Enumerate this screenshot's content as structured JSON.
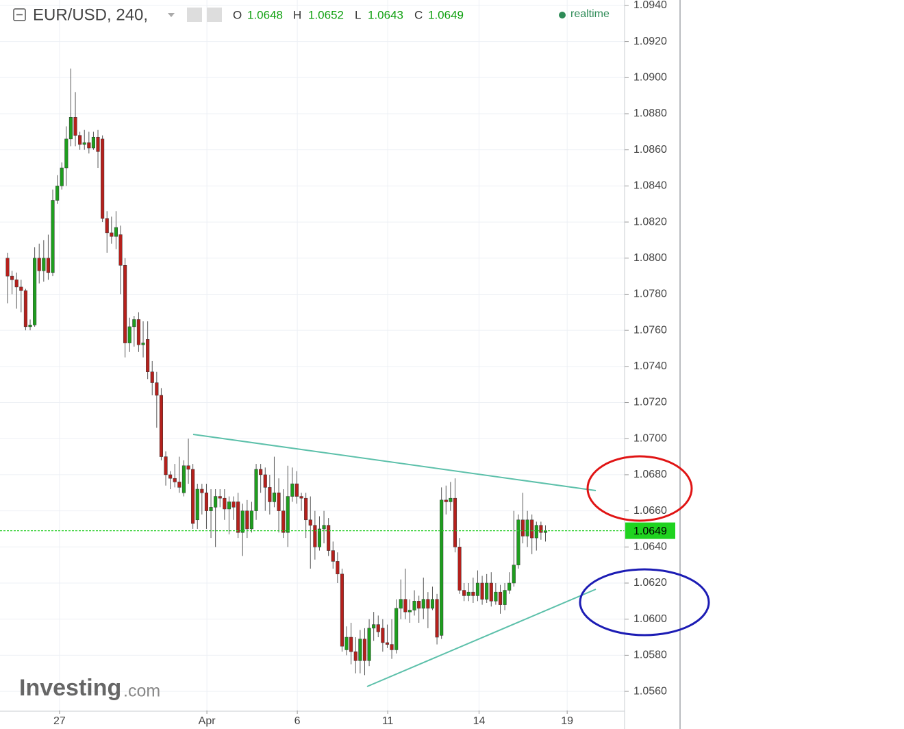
{
  "chart_data": {
    "type": "candlestick",
    "title": "EUR/USD, 240,",
    "ohlc_labels": [
      "O",
      "H",
      "L",
      "C"
    ],
    "status": "realtime",
    "watermark": [
      "Investing",
      ".com"
    ],
    "up_color": "#1e9e1e",
    "down_color": "#b5201c",
    "grid": true,
    "open": [
      1.08,
      1.079,
      1.0788,
      1.0784,
      1.0782,
      1.0762,
      1.0763,
      1.08,
      1.0793,
      1.08,
      1.0792,
      1.0832,
      1.084,
      1.085,
      1.0866,
      1.0878,
      1.0868,
      1.0863,
      1.0864,
      1.0861,
      1.0867,
      1.0866,
      1.0822,
      1.0814,
      1.0812,
      1.0813,
      1.0796,
      1.0753,
      1.0762,
      1.0766,
      1.0752,
      1.0755,
      1.0737,
      1.0731,
      1.0724,
      1.069,
      1.068,
      1.0678,
      1.0676,
      1.067,
      1.0685,
      1.0683,
      1.0655,
      1.0672,
      1.067,
      1.066,
      1.0662,
      1.0668,
      1.0667,
      1.0661,
      1.0665,
      1.0665,
      1.0648,
      1.066,
      1.065,
      1.066,
      1.0683,
      1.068,
      1.0673,
      1.0665,
      1.067,
      1.066,
      1.0648,
      1.0668,
      1.0675,
      1.0668,
      1.0667,
      1.0655,
      1.0652,
      1.064,
      1.065,
      1.0652,
      1.0638,
      1.0632,
      1.0625,
      1.0583,
      1.059,
      1.0582,
      1.0577,
      1.0589,
      1.0577,
      1.0595,
      1.0597,
      1.0595,
      1.0587,
      1.0586,
      1.0583,
      1.0606,
      1.0611,
      1.0604,
      1.0605,
      1.061,
      1.0606,
      1.0611,
      1.0606,
      1.0611,
      1.0591,
      1.0666,
      1.0665,
      1.0667,
      1.064,
      1.0616,
      1.0613,
      1.0615,
      1.0613,
      1.062,
      1.0611,
      1.062,
      1.061,
      1.0615,
      1.0608,
      1.0616,
      1.062,
      1.063,
      1.0655,
      1.0646,
      1.0655,
      1.0645,
      1.0652,
      1.0648
    ],
    "high": [
      1.0803,
      1.0793,
      1.0792,
      1.0788,
      1.0783,
      1.0766,
      1.0806,
      1.0808,
      1.081,
      1.0813,
      1.0838,
      1.0846,
      1.0853,
      1.0873,
      1.0905,
      1.0892,
      1.087,
      1.0871,
      1.087,
      1.087,
      1.0871,
      1.0868,
      1.0826,
      1.0823,
      1.0826,
      1.0818,
      1.08,
      1.0767,
      1.0768,
      1.077,
      1.0765,
      1.0765,
      1.0743,
      1.0737,
      1.0728,
      1.0693,
      1.0682,
      1.0686,
      1.069,
      1.0688,
      1.07,
      1.0686,
      1.0675,
      1.0675,
      1.0675,
      1.0672,
      1.0672,
      1.0672,
      1.0672,
      1.0668,
      1.0668,
      1.067,
      1.0664,
      1.0666,
      1.0665,
      1.0686,
      1.0686,
      1.0684,
      1.068,
      1.069,
      1.0678,
      1.0672,
      1.0685,
      1.0684,
      1.0682,
      1.067,
      1.067,
      1.0668,
      1.066,
      1.0657,
      1.066,
      1.0656,
      1.0643,
      1.0637,
      1.0628,
      1.0596,
      1.0598,
      1.059,
      1.0594,
      1.0595,
      1.06,
      1.0604,
      1.0602,
      1.06,
      1.0597,
      1.06,
      1.0611,
      1.0622,
      1.0628,
      1.0611,
      1.0616,
      1.0613,
      1.0623,
      1.0615,
      1.0618,
      1.0614,
      1.0673,
      1.0674,
      1.0676,
      1.0678,
      1.0645,
      1.062,
      1.062,
      1.0623,
      1.0627,
      1.0624,
      1.0625,
      1.0626,
      1.062,
      1.0619,
      1.062,
      1.0626,
      1.066,
      1.0658,
      1.067,
      1.066,
      1.0658,
      1.0654,
      1.0654,
      1.0652
    ],
    "low": [
      1.0775,
      1.078,
      1.0772,
      1.077,
      1.076,
      1.076,
      1.0762,
      1.0786,
      1.0787,
      1.0788,
      1.079,
      1.083,
      1.0838,
      1.084,
      1.0862,
      1.0862,
      1.086,
      1.086,
      1.0858,
      1.086,
      1.085,
      1.082,
      1.0803,
      1.0808,
      1.0805,
      1.078,
      1.0745,
      1.0748,
      1.0751,
      1.0748,
      1.0745,
      1.0733,
      1.0724,
      1.0706,
      1.0688,
      1.0674,
      1.0672,
      1.0673,
      1.067,
      1.0668,
      1.0675,
      1.065,
      1.065,
      1.0658,
      1.065,
      1.0645,
      1.064,
      1.0662,
      1.0655,
      1.0647,
      1.0655,
      1.0645,
      1.0635,
      1.0645,
      1.0648,
      1.0655,
      1.067,
      1.066,
      1.0658,
      1.0662,
      1.0648,
      1.0645,
      1.064,
      1.0665,
      1.0664,
      1.066,
      1.0645,
      1.0628,
      1.0633,
      1.0638,
      1.0642,
      1.0635,
      1.0628,
      1.062,
      1.0582,
      1.058,
      1.0575,
      1.057,
      1.057,
      1.0569,
      1.0574,
      1.0588,
      1.059,
      1.0582,
      1.0584,
      1.0578,
      1.0581,
      1.06,
      1.06,
      1.0598,
      1.0602,
      1.0598,
      1.06,
      1.0595,
      1.0605,
      1.0586,
      1.0589,
      1.0658,
      1.066,
      1.0637,
      1.0614,
      1.061,
      1.061,
      1.0609,
      1.061,
      1.0608,
      1.0609,
      1.0607,
      1.0608,
      1.0603,
      1.0605,
      1.0614,
      1.0618,
      1.0628,
      1.0642,
      1.064,
      1.0636,
      1.0638,
      1.0644,
      1.0643
    ],
    "close": [
      1.079,
      1.0788,
      1.0784,
      1.0782,
      1.0762,
      1.0763,
      1.08,
      1.0793,
      1.08,
      1.0792,
      1.0832,
      1.084,
      1.085,
      1.0866,
      1.0878,
      1.0868,
      1.0863,
      1.0864,
      1.0861,
      1.0867,
      1.0859,
      1.0822,
      1.0814,
      1.0812,
      1.0817,
      1.0796,
      1.0753,
      1.0762,
      1.0766,
      1.0752,
      1.0753,
      1.0737,
      1.0731,
      1.0724,
      1.069,
      1.068,
      1.0678,
      1.0676,
      1.0673,
      1.0685,
      1.0683,
      1.0653,
      1.0672,
      1.067,
      1.066,
      1.0662,
      1.0668,
      1.0667,
      1.0661,
      1.0665,
      1.0662,
      1.0648,
      1.066,
      1.065,
      1.066,
      1.0683,
      1.068,
      1.0673,
      1.0665,
      1.067,
      1.066,
      1.0648,
      1.0668,
      1.0675,
      1.0668,
      1.0667,
      1.0655,
      1.0652,
      1.064,
      1.065,
      1.0652,
      1.0638,
      1.0632,
      1.0625,
      1.0585,
      1.059,
      1.0582,
      1.0577,
      1.0589,
      1.0577,
      1.0595,
      1.0597,
      1.0593,
      1.0587,
      1.0586,
      1.0583,
      1.0606,
      1.0611,
      1.0604,
      1.0605,
      1.061,
      1.0606,
      1.0611,
      1.0606,
      1.0611,
      1.059,
      1.0666,
      1.0665,
      1.0667,
      1.064,
      1.0616,
      1.0613,
      1.0615,
      1.0613,
      1.062,
      1.0611,
      1.062,
      1.061,
      1.0615,
      1.0608,
      1.0616,
      1.062,
      1.063,
      1.0655,
      1.0646,
      1.0655,
      1.0645,
      1.0652,
      1.0648,
      1.0649
    ],
    "xlim": [
      -1.67,
      136.5
    ],
    "xticks": [
      {
        "value": 11.5,
        "label": "27"
      },
      {
        "value": 44.1,
        "label": "Apr"
      },
      {
        "value": 64.1,
        "label": "6"
      },
      {
        "value": 84.1,
        "label": "11"
      },
      {
        "value": 104.3,
        "label": "14"
      },
      {
        "value": 123.8,
        "label": "19"
      }
    ],
    "ylim": [
      1.05494,
      1.0943
    ],
    "yticks": [
      {
        "value": 1.094,
        "label": "1.0940"
      },
      {
        "value": 1.092,
        "label": "1.0920"
      },
      {
        "value": 1.09,
        "label": "1.0900"
      },
      {
        "value": 1.088,
        "label": "1.0880"
      },
      {
        "value": 1.086,
        "label": "1.0860"
      },
      {
        "value": 1.084,
        "label": "1.0840"
      },
      {
        "value": 1.082,
        "label": "1.0820"
      },
      {
        "value": 1.08,
        "label": "1.0800"
      },
      {
        "value": 1.078,
        "label": "1.0780"
      },
      {
        "value": 1.076,
        "label": "1.0760"
      },
      {
        "value": 1.074,
        "label": "1.0740"
      },
      {
        "value": 1.072,
        "label": "1.0720"
      },
      {
        "value": 1.07,
        "label": "1.0700"
      },
      {
        "value": 1.068,
        "label": "1.0680"
      },
      {
        "value": 1.066,
        "label": "1.0660"
      },
      {
        "value": 1.064,
        "label": "1.0640"
      },
      {
        "value": 1.062,
        "label": "1.0620"
      },
      {
        "value": 1.06,
        "label": "1.0600"
      },
      {
        "value": 1.058,
        "label": "1.0580"
      },
      {
        "value": 1.056,
        "label": "1.0560"
      }
    ]
  }
}
